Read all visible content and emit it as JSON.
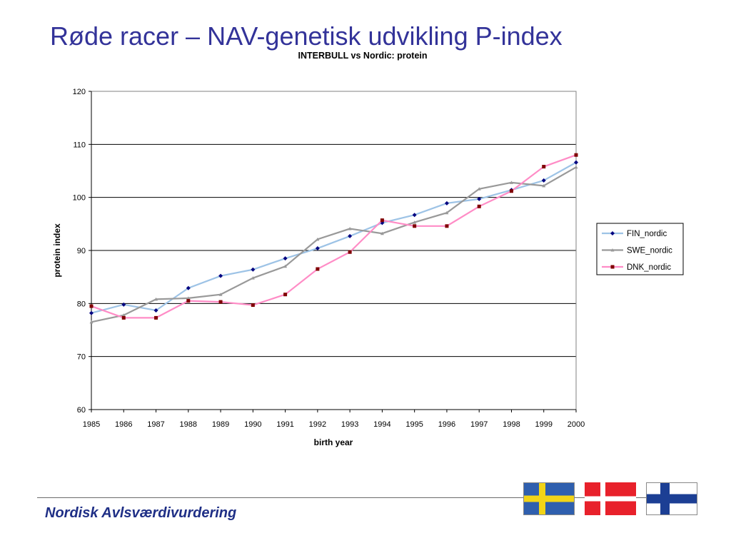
{
  "slide": {
    "title": "Røde racer – NAV-genetisk udvikling P-index",
    "footer": "Nordisk Avlsværdivurdering"
  },
  "flags": [
    {
      "name": "sweden-flag",
      "colors": {
        "field": "#2f5fae",
        "cross": "#f2d417"
      }
    },
    {
      "name": "denmark-flag",
      "colors": {
        "field": "#e8212b",
        "cross": "#ffffff"
      }
    },
    {
      "name": "finland-flag",
      "colors": {
        "field": "#ffffff",
        "cross": "#1c3f94"
      }
    }
  ],
  "chart_data": {
    "type": "line",
    "title": "INTERBULL vs Nordic: protein",
    "xlabel": "birth year",
    "ylabel": "protein index",
    "x": [
      "1985",
      "1986",
      "1987",
      "1988",
      "1989",
      "1990",
      "1991",
      "1992",
      "1993",
      "1994",
      "1995",
      "1996",
      "1997",
      "1998",
      "1999",
      "2000"
    ],
    "ylim": [
      60,
      120
    ],
    "yticks": [
      60,
      70,
      80,
      90,
      100,
      110,
      120
    ],
    "grid": true,
    "legend_position": "right",
    "series": [
      {
        "name": "FIN_nordic",
        "color": "#9dc3e6",
        "marker_color": "#000080",
        "marker": "diamond",
        "values": [
          78.2,
          79.8,
          78.7,
          82.9,
          85.2,
          86.4,
          88.5,
          90.4,
          92.7,
          95.2,
          96.7,
          98.9,
          99.7,
          101.4,
          103.2,
          106.6
        ]
      },
      {
        "name": "SWE_nordic",
        "color": "#999999",
        "marker_color": "#999999",
        "marker": "triangle",
        "values": [
          76.5,
          77.8,
          80.8,
          81.0,
          81.7,
          84.8,
          87.0,
          92.1,
          94.1,
          93.2,
          95.3,
          97.1,
          101.6,
          102.8,
          102.2,
          105.7
        ]
      },
      {
        "name": "DNK_nordic",
        "color": "#ff8cc6",
        "marker_color": "#800000",
        "marker": "square",
        "values": [
          79.5,
          77.3,
          77.3,
          80.5,
          80.3,
          79.7,
          81.7,
          86.5,
          89.7,
          95.7,
          94.6,
          94.6,
          98.3,
          101.2,
          105.8,
          108.0
        ]
      }
    ]
  }
}
